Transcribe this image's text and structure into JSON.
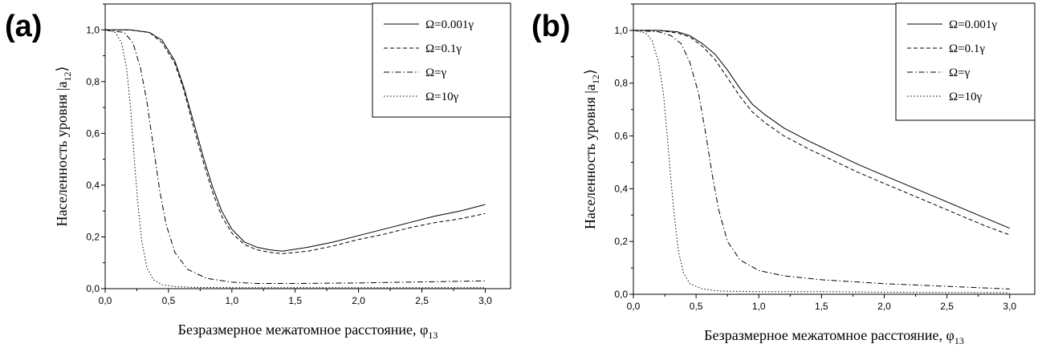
{
  "chart_data": [
    {
      "type": "line",
      "panel_label": "(a)",
      "xlabel": "Безразмерное межатомное расстояние, φ",
      "xlabel_sub": "13",
      "ylabel": "Населенность уровня |a",
      "ylabel_sub": "12",
      "ylabel_end": "⟩",
      "xlim": [
        0,
        3.2
      ],
      "ylim": [
        0,
        1.1
      ],
      "x_ticks": [
        "0,0",
        "0,5",
        "1,0",
        "1,5",
        "2,0",
        "2,5",
        "3,0"
      ],
      "y_ticks": [
        "0,0",
        "0,2",
        "0,4",
        "0,6",
        "0,8",
        "1,0"
      ],
      "grid": false,
      "legend_position": "top-right",
      "series": [
        {
          "name": "Ω=0.001γ",
          "style": "solid",
          "x": [
            0,
            0.2,
            0.35,
            0.45,
            0.55,
            0.62,
            0.7,
            0.78,
            0.85,
            0.92,
            1.0,
            1.1,
            1.2,
            1.3,
            1.4,
            1.6,
            1.8,
            2.0,
            2.2,
            2.4,
            2.6,
            2.8,
            3.0
          ],
          "y": [
            1.0,
            1.0,
            0.99,
            0.96,
            0.88,
            0.78,
            0.64,
            0.5,
            0.39,
            0.3,
            0.23,
            0.18,
            0.16,
            0.15,
            0.145,
            0.16,
            0.18,
            0.205,
            0.23,
            0.255,
            0.28,
            0.3,
            0.325
          ]
        },
        {
          "name": "Ω=0.1γ",
          "style": "dashed",
          "x": [
            0,
            0.2,
            0.35,
            0.45,
            0.55,
            0.62,
            0.7,
            0.78,
            0.85,
            0.92,
            1.0,
            1.1,
            1.2,
            1.3,
            1.4,
            1.6,
            1.8,
            2.0,
            2.2,
            2.4,
            2.6,
            2.8,
            3.0
          ],
          "y": [
            1.0,
            1.0,
            0.99,
            0.95,
            0.87,
            0.77,
            0.62,
            0.48,
            0.37,
            0.28,
            0.215,
            0.17,
            0.15,
            0.14,
            0.135,
            0.145,
            0.165,
            0.19,
            0.21,
            0.235,
            0.255,
            0.27,
            0.29
          ]
        },
        {
          "name": "Ω=γ",
          "style": "dashdot",
          "x": [
            0,
            0.15,
            0.22,
            0.28,
            0.33,
            0.38,
            0.43,
            0.48,
            0.55,
            0.65,
            0.8,
            1.0,
            1.2,
            1.5,
            2.0,
            2.5,
            3.0
          ],
          "y": [
            1.0,
            0.99,
            0.95,
            0.85,
            0.72,
            0.55,
            0.38,
            0.25,
            0.14,
            0.075,
            0.04,
            0.025,
            0.02,
            0.02,
            0.022,
            0.026,
            0.03
          ]
        },
        {
          "name": "Ω=10γ",
          "style": "dotted",
          "x": [
            0,
            0.08,
            0.13,
            0.17,
            0.2,
            0.23,
            0.26,
            0.29,
            0.33,
            0.38,
            0.45,
            0.55,
            0.7,
            1.0,
            1.5,
            2.0,
            2.5,
            3.0
          ],
          "y": [
            1.0,
            0.99,
            0.95,
            0.85,
            0.7,
            0.5,
            0.32,
            0.18,
            0.08,
            0.035,
            0.015,
            0.008,
            0.005,
            0.004,
            0.004,
            0.004,
            0.004,
            0.004
          ]
        }
      ]
    },
    {
      "type": "line",
      "panel_label": "(b)",
      "xlabel": "Безразмерное межатомное расстояние, φ",
      "xlabel_sub": "13",
      "ylabel": "Населенность уровня |a",
      "ylabel_sub": "12",
      "ylabel_end": "⟩",
      "xlim": [
        0,
        3.2
      ],
      "ylim": [
        0,
        1.1
      ],
      "x_ticks": [
        "0,0",
        "0,5",
        "1,0",
        "1,5",
        "2,0",
        "2,5",
        "3,0"
      ],
      "y_ticks": [
        "0,0",
        "0,2",
        "0,4",
        "0,6",
        "0,8",
        "1,0"
      ],
      "grid": false,
      "legend_position": "top-right",
      "series": [
        {
          "name": "Ω=0.001γ",
          "style": "solid",
          "x": [
            0,
            0.2,
            0.35,
            0.45,
            0.55,
            0.65,
            0.75,
            0.85,
            0.95,
            1.05,
            1.2,
            1.4,
            1.6,
            1.8,
            2.0,
            2.2,
            2.4,
            2.6,
            2.8,
            3.0
          ],
          "y": [
            1.0,
            1.0,
            0.995,
            0.98,
            0.95,
            0.91,
            0.85,
            0.78,
            0.72,
            0.68,
            0.63,
            0.58,
            0.535,
            0.49,
            0.45,
            0.41,
            0.37,
            0.33,
            0.29,
            0.25
          ]
        },
        {
          "name": "Ω=0.1γ",
          "style": "dashed",
          "x": [
            0,
            0.2,
            0.35,
            0.45,
            0.55,
            0.65,
            0.75,
            0.85,
            0.95,
            1.05,
            1.2,
            1.4,
            1.6,
            1.8,
            2.0,
            2.2,
            2.4,
            2.6,
            2.8,
            3.0
          ],
          "y": [
            1.0,
            1.0,
            0.99,
            0.975,
            0.94,
            0.89,
            0.82,
            0.75,
            0.69,
            0.65,
            0.6,
            0.55,
            0.505,
            0.46,
            0.42,
            0.38,
            0.34,
            0.3,
            0.26,
            0.225
          ]
        },
        {
          "name": "Ω=γ",
          "style": "dashdot",
          "x": [
            0,
            0.2,
            0.3,
            0.38,
            0.45,
            0.52,
            0.58,
            0.63,
            0.68,
            0.75,
            0.85,
            1.0,
            1.2,
            1.5,
            2.0,
            2.5,
            3.0
          ],
          "y": [
            1.0,
            0.995,
            0.98,
            0.95,
            0.88,
            0.76,
            0.6,
            0.45,
            0.32,
            0.2,
            0.13,
            0.09,
            0.07,
            0.055,
            0.04,
            0.03,
            0.02
          ]
        },
        {
          "name": "Ω=10γ",
          "style": "dotted",
          "x": [
            0,
            0.1,
            0.15,
            0.2,
            0.24,
            0.27,
            0.3,
            0.33,
            0.36,
            0.4,
            0.45,
            0.55,
            0.7,
            1.0,
            1.5,
            2.0,
            2.5,
            3.0
          ],
          "y": [
            1.0,
            0.99,
            0.96,
            0.88,
            0.76,
            0.6,
            0.43,
            0.28,
            0.16,
            0.08,
            0.04,
            0.02,
            0.012,
            0.01,
            0.01,
            0.008,
            0.007,
            0.006
          ]
        }
      ]
    }
  ]
}
